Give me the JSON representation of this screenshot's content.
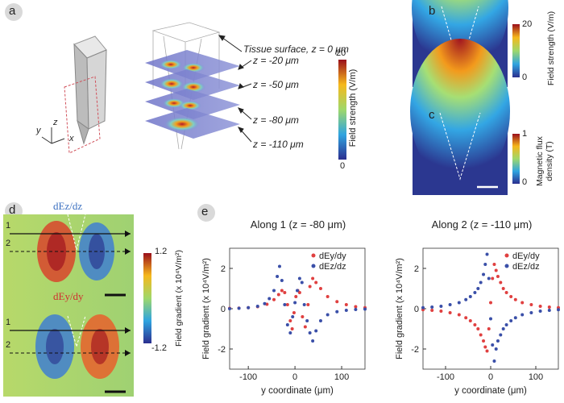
{
  "panels": {
    "a": {
      "label": "a",
      "layers": [
        "Tissue surface, z = 0 μm",
        "z = -20 μm",
        "z = -50 μm",
        "z = -80 μm",
        "z = -110 μm"
      ],
      "colorbar": {
        "label": "Field strength (V/m)",
        "max": "20",
        "min": "0"
      },
      "axes": {
        "x": "x",
        "y": "y",
        "z": "z"
      }
    },
    "b": {
      "label": "b",
      "colorbar": {
        "label": "Field strength (V/m)",
        "max": "20",
        "min": "0"
      }
    },
    "c": {
      "label": "c",
      "colorbar": {
        "label1": "Magnetic flux",
        "label2": "density (T)",
        "max": "1",
        "min": "0"
      }
    },
    "d": {
      "label": "d",
      "top_title": "dEz/dz",
      "bottom_title": "dEy/dy",
      "line1": "1",
      "line2": "2",
      "colorbar": {
        "label": "Field gradient (x 10⁴V/m²)",
        "max": "1.2",
        "min": "-1.2"
      }
    },
    "e": {
      "label": "e"
    }
  },
  "colors": {
    "dEy": "#e04040",
    "dEz": "#3a4fa8"
  },
  "chart_data": [
    {
      "type": "scatter",
      "title": "Along 1 (z = -80 μm)",
      "xlabel": "y coordinate (μm)",
      "ylabel": "Field gradient (x 10⁴V/m²)",
      "xlim": [
        -140,
        150
      ],
      "ylim": [
        -3,
        3
      ],
      "xticks": [
        "-100",
        "0",
        "100"
      ],
      "yticks": [
        "-2",
        "0",
        "2"
      ],
      "legend": "top-right",
      "series": [
        {
          "name": "dEy/dy",
          "color": "#e04040",
          "x": [
            -140,
            -120,
            -100,
            -80,
            -60,
            -45,
            -35,
            -28,
            -22,
            -16,
            -10,
            -6,
            -2,
            2,
            6,
            10,
            16,
            22,
            28,
            32,
            38,
            45,
            55,
            70,
            90,
            110,
            130,
            150
          ],
          "y": [
            0.02,
            0.03,
            0.05,
            0.1,
            0.22,
            0.45,
            0.7,
            0.9,
            0.8,
            0.2,
            -0.6,
            -1.0,
            -0.2,
            0.6,
            0.9,
            0.8,
            -0.4,
            -0.9,
            0.2,
            1.1,
            1.5,
            1.3,
            1.0,
            0.6,
            0.35,
            0.2,
            0.1,
            0.05
          ]
        },
        {
          "name": "dEz/dz",
          "color": "#3a4fa8",
          "x": [
            -140,
            -120,
            -100,
            -80,
            -65,
            -55,
            -45,
            -38,
            -33,
            -28,
            -22,
            -16,
            -10,
            -5,
            0,
            5,
            10,
            15,
            20,
            26,
            32,
            38,
            45,
            55,
            70,
            90,
            110,
            130,
            150
          ],
          "y": [
            0.0,
            0.02,
            0.05,
            0.12,
            0.25,
            0.5,
            0.9,
            1.6,
            2.1,
            1.4,
            0.2,
            -0.8,
            -1.2,
            -0.4,
            0.3,
            0.9,
            1.5,
            1.3,
            0.2,
            -0.6,
            -1.2,
            -1.6,
            -1.1,
            -0.6,
            -0.3,
            -0.15,
            -0.08,
            -0.04,
            -0.02
          ]
        }
      ]
    },
    {
      "type": "scatter",
      "title": "Along 2 (z = -110 μm)",
      "xlabel": "y coordinate (μm)",
      "ylabel": "Field gradient (x 10⁴V/m²)",
      "xlim": [
        -150,
        150
      ],
      "ylim": [
        -3,
        3
      ],
      "xticks": [
        "-100",
        "0",
        "100"
      ],
      "yticks": [
        "-2",
        "0",
        "2"
      ],
      "legend": "top-right",
      "series": [
        {
          "name": "dEy/dy",
          "color": "#e04040",
          "x": [
            -150,
            -130,
            -110,
            -90,
            -70,
            -55,
            -45,
            -35,
            -28,
            -22,
            -16,
            -12,
            -8,
            -4,
            0,
            4,
            8,
            12,
            16,
            22,
            28,
            35,
            45,
            55,
            70,
            90,
            110,
            130,
            150
          ],
          "y": [
            -0.05,
            -0.08,
            -0.12,
            -0.2,
            -0.3,
            -0.45,
            -0.6,
            -0.8,
            -1.0,
            -1.3,
            -1.6,
            -1.9,
            -2.1,
            -1.0,
            0.3,
            1.5,
            2.2,
            1.9,
            1.6,
            1.3,
            1.0,
            0.8,
            0.6,
            0.45,
            0.3,
            0.2,
            0.12,
            0.08,
            0.05
          ]
        },
        {
          "name": "dEz/dz",
          "color": "#3a4fa8",
          "x": [
            -150,
            -130,
            -110,
            -90,
            -70,
            -55,
            -45,
            -35,
            -28,
            -22,
            -16,
            -12,
            -8,
            -4,
            0,
            4,
            8,
            12,
            16,
            22,
            28,
            35,
            45,
            55,
            70,
            90,
            110,
            130,
            150
          ],
          "y": [
            0.05,
            0.08,
            0.12,
            0.2,
            0.3,
            0.45,
            0.6,
            0.8,
            1.0,
            1.3,
            1.7,
            2.2,
            2.7,
            1.5,
            -0.5,
            -1.8,
            -2.6,
            -2.0,
            -1.6,
            -1.3,
            -1.0,
            -0.8,
            -0.6,
            -0.45,
            -0.3,
            -0.2,
            -0.12,
            -0.08,
            -0.05
          ]
        }
      ]
    }
  ]
}
